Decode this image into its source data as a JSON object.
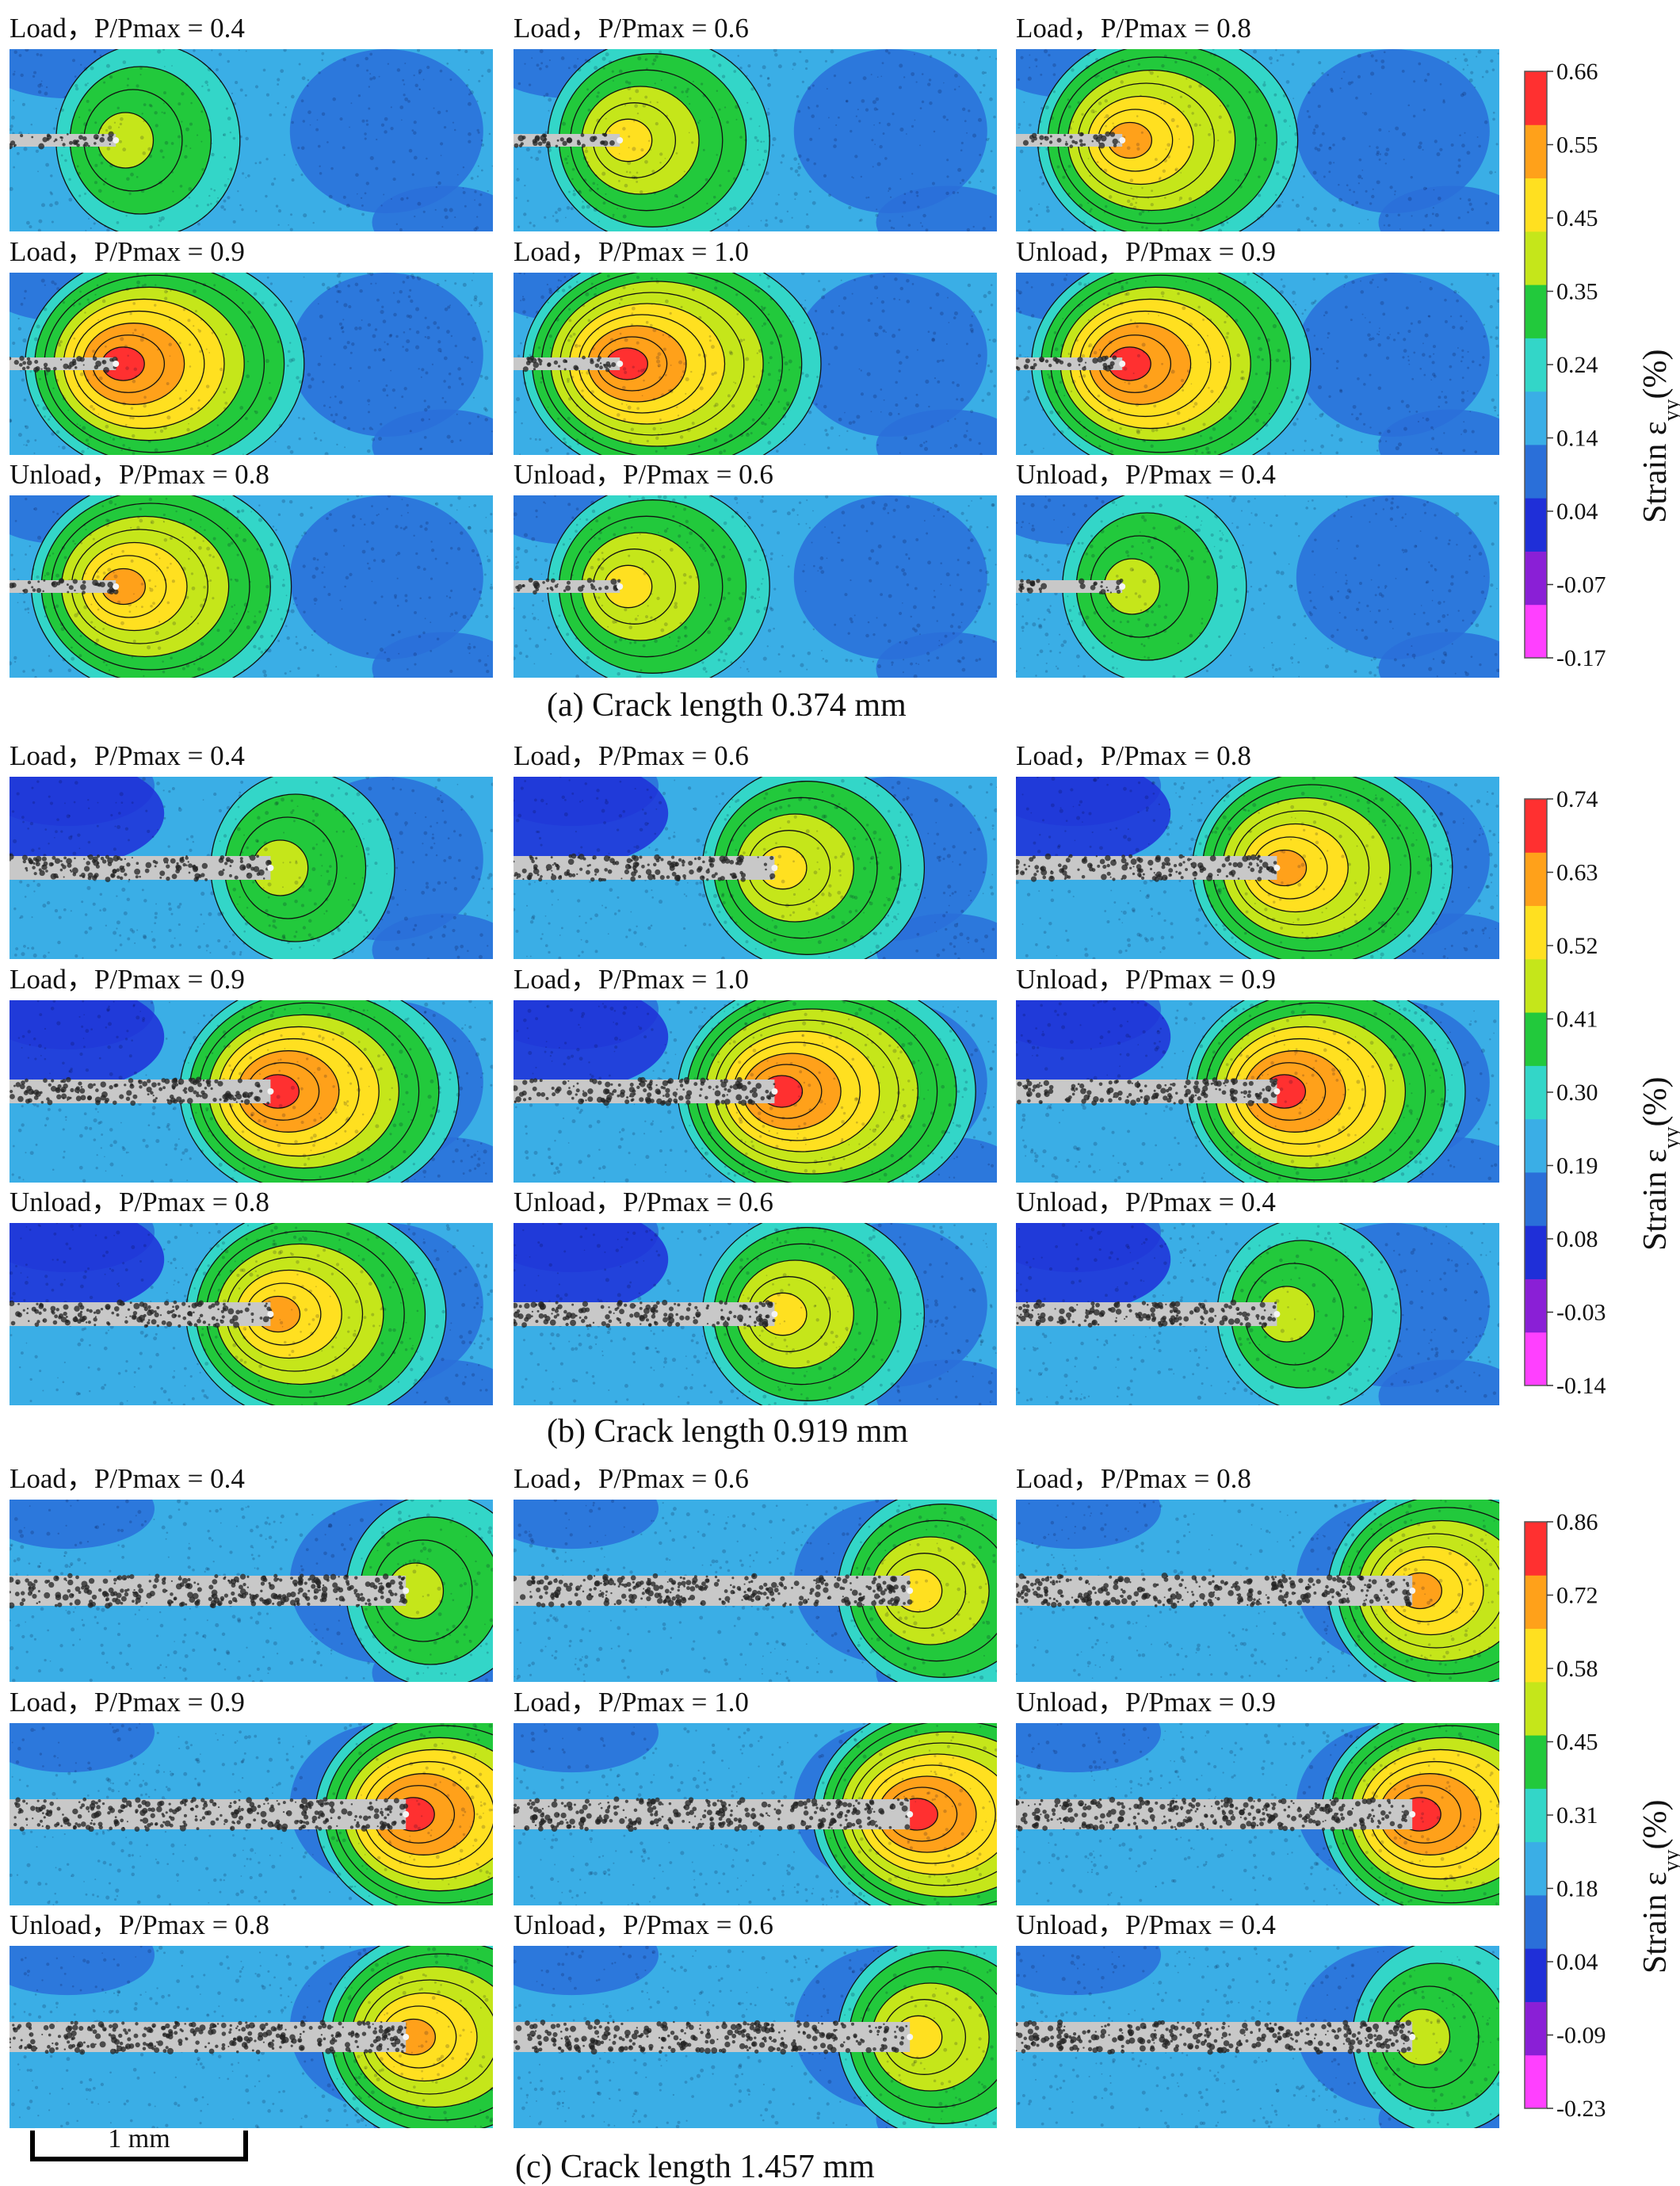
{
  "figure": {
    "groups": [
      {
        "caption": "(a) Crack length 0.374 mm",
        "colorbar": {
          "title": "Strain ε",
          "subscript": "yy",
          "unit": "(%)",
          "ticks": [
            "0.66",
            "0.55",
            "0.45",
            "0.35",
            "0.24",
            "0.14",
            "0.04",
            "-0.07",
            "-0.17"
          ]
        },
        "panels": [
          {
            "label": "Load，P/Pmax = 0.4",
            "load_ratio": 0.4,
            "crack_tip_fraction": 0.22
          },
          {
            "label": "Load，P/Pmax = 0.6",
            "load_ratio": 0.6,
            "crack_tip_fraction": 0.22
          },
          {
            "label": "Load，P/Pmax = 0.8",
            "load_ratio": 0.8,
            "crack_tip_fraction": 0.22
          },
          {
            "label": "Load，P/Pmax = 0.9",
            "load_ratio": 0.9,
            "crack_tip_fraction": 0.22
          },
          {
            "label": "Load，P/Pmax = 1.0",
            "load_ratio": 1.0,
            "crack_tip_fraction": 0.22
          },
          {
            "label": "Unload，P/Pmax = 0.9",
            "load_ratio": 0.9,
            "crack_tip_fraction": 0.22
          },
          {
            "label": "Unload，P/Pmax = 0.8",
            "load_ratio": 0.8,
            "crack_tip_fraction": 0.22
          },
          {
            "label": "Unload，P/Pmax = 0.6",
            "load_ratio": 0.6,
            "crack_tip_fraction": 0.22
          },
          {
            "label": "Unload，P/Pmax = 0.4",
            "load_ratio": 0.4,
            "crack_tip_fraction": 0.22
          }
        ]
      },
      {
        "caption": "(b) Crack length 0.919 mm",
        "colorbar": {
          "title": "Strain ε",
          "subscript": "yy",
          "unit": "(%)",
          "ticks": [
            "0.74",
            "0.63",
            "0.52",
            "0.41",
            "0.30",
            "0.19",
            "0.08",
            "-0.03",
            "-0.14"
          ]
        },
        "panels": [
          {
            "label": "Load，P/Pmax = 0.4",
            "load_ratio": 0.4,
            "crack_tip_fraction": 0.54
          },
          {
            "label": "Load，P/Pmax = 0.6",
            "load_ratio": 0.6,
            "crack_tip_fraction": 0.54
          },
          {
            "label": "Load，P/Pmax = 0.8",
            "load_ratio": 0.8,
            "crack_tip_fraction": 0.54
          },
          {
            "label": "Load，P/Pmax = 0.9",
            "load_ratio": 0.9,
            "crack_tip_fraction": 0.54
          },
          {
            "label": "Load，P/Pmax = 1.0",
            "load_ratio": 1.0,
            "crack_tip_fraction": 0.54
          },
          {
            "label": "Unload，P/Pmax = 0.9",
            "load_ratio": 0.9,
            "crack_tip_fraction": 0.54
          },
          {
            "label": "Unload，P/Pmax = 0.8",
            "load_ratio": 0.8,
            "crack_tip_fraction": 0.54
          },
          {
            "label": "Unload，P/Pmax = 0.6",
            "load_ratio": 0.6,
            "crack_tip_fraction": 0.54
          },
          {
            "label": "Unload，P/Pmax = 0.4",
            "load_ratio": 0.4,
            "crack_tip_fraction": 0.54
          }
        ]
      },
      {
        "caption": "(c) Crack length 1.457 mm",
        "colorbar": {
          "title": "Strain ε",
          "subscript": "yy",
          "unit": "(%)",
          "ticks": [
            "0.86",
            "0.72",
            "0.58",
            "0.45",
            "0.31",
            "0.18",
            "0.04",
            "-0.09",
            "-0.23"
          ]
        },
        "panels": [
          {
            "label": "Load，P/Pmax = 0.4",
            "load_ratio": 0.4,
            "crack_tip_fraction": 0.82
          },
          {
            "label": "Load，P/Pmax = 0.6",
            "load_ratio": 0.6,
            "crack_tip_fraction": 0.82
          },
          {
            "label": "Load，P/Pmax = 0.8",
            "load_ratio": 0.8,
            "crack_tip_fraction": 0.82
          },
          {
            "label": "Load，P/Pmax = 0.9",
            "load_ratio": 0.9,
            "crack_tip_fraction": 0.82
          },
          {
            "label": "Load，P/Pmax = 1.0",
            "load_ratio": 1.0,
            "crack_tip_fraction": 0.82
          },
          {
            "label": "Unload，P/Pmax = 0.9",
            "load_ratio": 0.9,
            "crack_tip_fraction": 0.82
          },
          {
            "label": "Unload，P/Pmax = 0.8",
            "load_ratio": 0.8,
            "crack_tip_fraction": 0.82
          },
          {
            "label": "Unload，P/Pmax = 0.6",
            "load_ratio": 0.6,
            "crack_tip_fraction": 0.82
          },
          {
            "label": "Unload，P/Pmax = 0.4",
            "load_ratio": 0.4,
            "crack_tip_fraction": 0.82
          }
        ]
      }
    ],
    "scale_bar": {
      "label": "1 mm"
    },
    "colormap": [
      "#ff40ff",
      "#8a1fd6",
      "#1f2fd8",
      "#2a6fd9",
      "#3aaee6",
      "#33d6c8",
      "#22c93c",
      "#c5e61a",
      "#ffe020",
      "#ffa11a",
      "#ff3030"
    ]
  }
}
